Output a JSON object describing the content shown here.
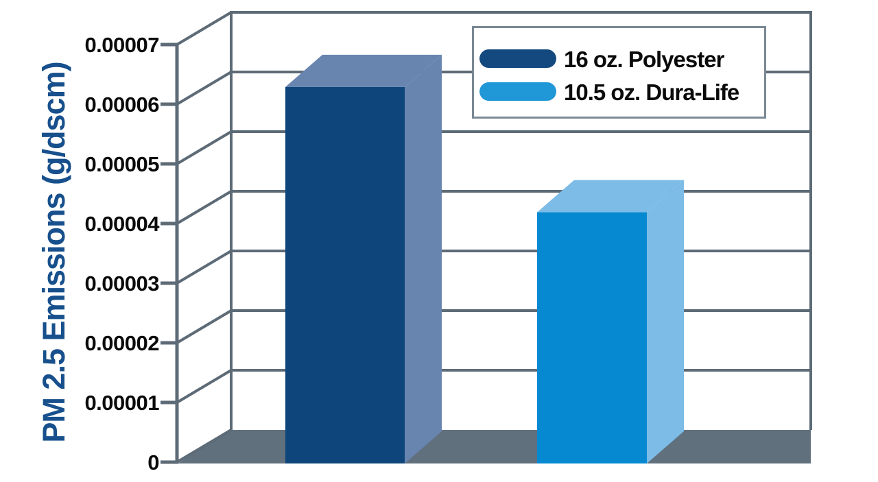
{
  "colors": {
    "grid": "#5D6B77",
    "floor": "#61707D",
    "axis_title": "#17508C",
    "legend_border": "#7A8894",
    "text": "#0A0A0A"
  },
  "axis": {
    "title": "PM 2.5 Emissions (g/dscm)",
    "tick_labels": [
      "0.00007",
      "0.00006",
      "0.00005",
      "0.00004",
      "0.00003",
      "0.00002",
      "0.00001",
      "0"
    ]
  },
  "legend": {
    "items": [
      {
        "label": "16 oz. Polyester",
        "color": "#14497F"
      },
      {
        "label": "10.5 oz. Dura-Life",
        "color": "#2097D6"
      }
    ]
  },
  "chart_data": {
    "type": "bar",
    "style": "3d-column",
    "title": "",
    "xlabel": "",
    "ylabel": "PM 2.5 Emissions (g/dscm)",
    "ylim": [
      0,
      7e-05
    ],
    "ytick_interval": 1e-05,
    "grid": true,
    "legend_position": "top-right",
    "categories": [
      "16 oz. Polyester",
      "10.5 oz. Dura-Life"
    ],
    "values": [
      6.3e-05,
      4.2e-05
    ],
    "series": [
      {
        "name": "16 oz. Polyester",
        "value": 6.3e-05,
        "front_color": "#0E467C",
        "shade_color": "#6885B0"
      },
      {
        "name": "10.5 oz. Dura-Life",
        "value": 4.2e-05,
        "front_color": "#0689D1",
        "shade_color": "#7CBCE6"
      }
    ]
  }
}
